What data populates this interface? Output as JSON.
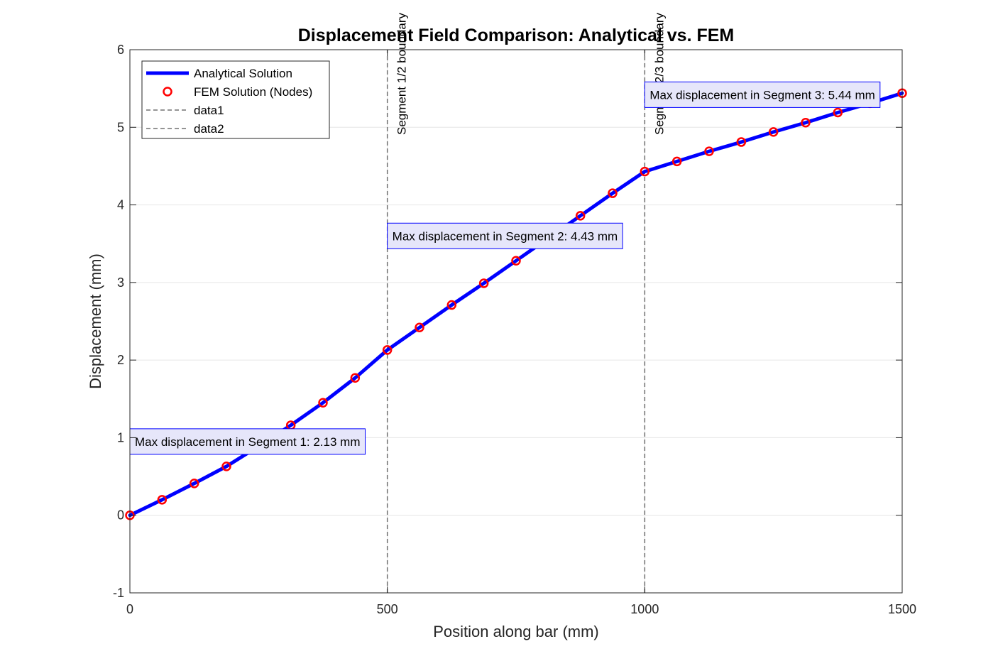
{
  "chart_data": {
    "type": "line",
    "title": "Displacement Field Comparison: Analytical vs. FEM",
    "xlabel": "Position along bar (mm)",
    "ylabel": "Displacement (mm)",
    "xlim": [
      0,
      1500
    ],
    "ylim": [
      -1,
      6
    ],
    "xticks": [
      0,
      500,
      1000,
      1500
    ],
    "yticks": [
      -1,
      0,
      1,
      2,
      3,
      4,
      5,
      6
    ],
    "grid": true,
    "legend_position": "top-left",
    "series": [
      {
        "name": "Analytical Solution",
        "style": "solid line",
        "color": "#0000ff",
        "x": [
          0,
          62.5,
          125,
          187.5,
          250,
          312.5,
          375,
          437.5,
          500,
          562.5,
          625,
          687.5,
          750,
          812.5,
          875,
          937.5,
          1000,
          1062.5,
          1125,
          1187.5,
          1250,
          1312.5,
          1375,
          1437.5,
          1500
        ],
        "y": [
          0,
          0.2,
          0.41,
          0.63,
          0.89,
          1.16,
          1.45,
          1.77,
          2.13,
          2.42,
          2.71,
          2.99,
          3.28,
          3.57,
          3.86,
          4.15,
          4.43,
          4.56,
          4.69,
          4.81,
          4.94,
          5.06,
          5.19,
          5.31,
          5.44
        ]
      },
      {
        "name": "FEM Solution (Nodes)",
        "style": "circle markers",
        "color": "#ff0000",
        "x": [
          0,
          62.5,
          125,
          187.5,
          250,
          312.5,
          375,
          437.5,
          500,
          562.5,
          625,
          687.5,
          750,
          812.5,
          875,
          937.5,
          1000,
          1062.5,
          1125,
          1187.5,
          1250,
          1312.5,
          1375,
          1437.5,
          1500
        ],
        "y": [
          0,
          0.2,
          0.41,
          0.63,
          0.89,
          1.16,
          1.45,
          1.77,
          2.13,
          2.42,
          2.71,
          2.99,
          3.28,
          3.57,
          3.86,
          4.15,
          4.43,
          4.56,
          4.69,
          4.81,
          4.94,
          5.06,
          5.19,
          5.31,
          5.44
        ]
      },
      {
        "name": "data1",
        "style": "dashed vertical line",
        "color": "#707070",
        "x": [
          500,
          500
        ],
        "y": [
          -1,
          6
        ]
      },
      {
        "name": "data2",
        "style": "dashed vertical line",
        "color": "#707070",
        "x": [
          1000,
          1000
        ],
        "y": [
          -1,
          6
        ]
      }
    ],
    "boundary_labels": [
      {
        "x": 500,
        "text": "Segment 1/2 boundary"
      },
      {
        "x": 1000,
        "text": "Segment 2/3 boundary"
      }
    ],
    "annotations": [
      {
        "text": "Max displacement in Segment 1: 2.13 mm",
        "x": 0,
        "y": 0.95
      },
      {
        "text": "Max displacement in Segment 2: 4.43 mm",
        "x": 500,
        "y": 3.6
      },
      {
        "text": "Max displacement in Segment 3: 5.44 mm",
        "x": 1000,
        "y": 5.42
      }
    ]
  }
}
